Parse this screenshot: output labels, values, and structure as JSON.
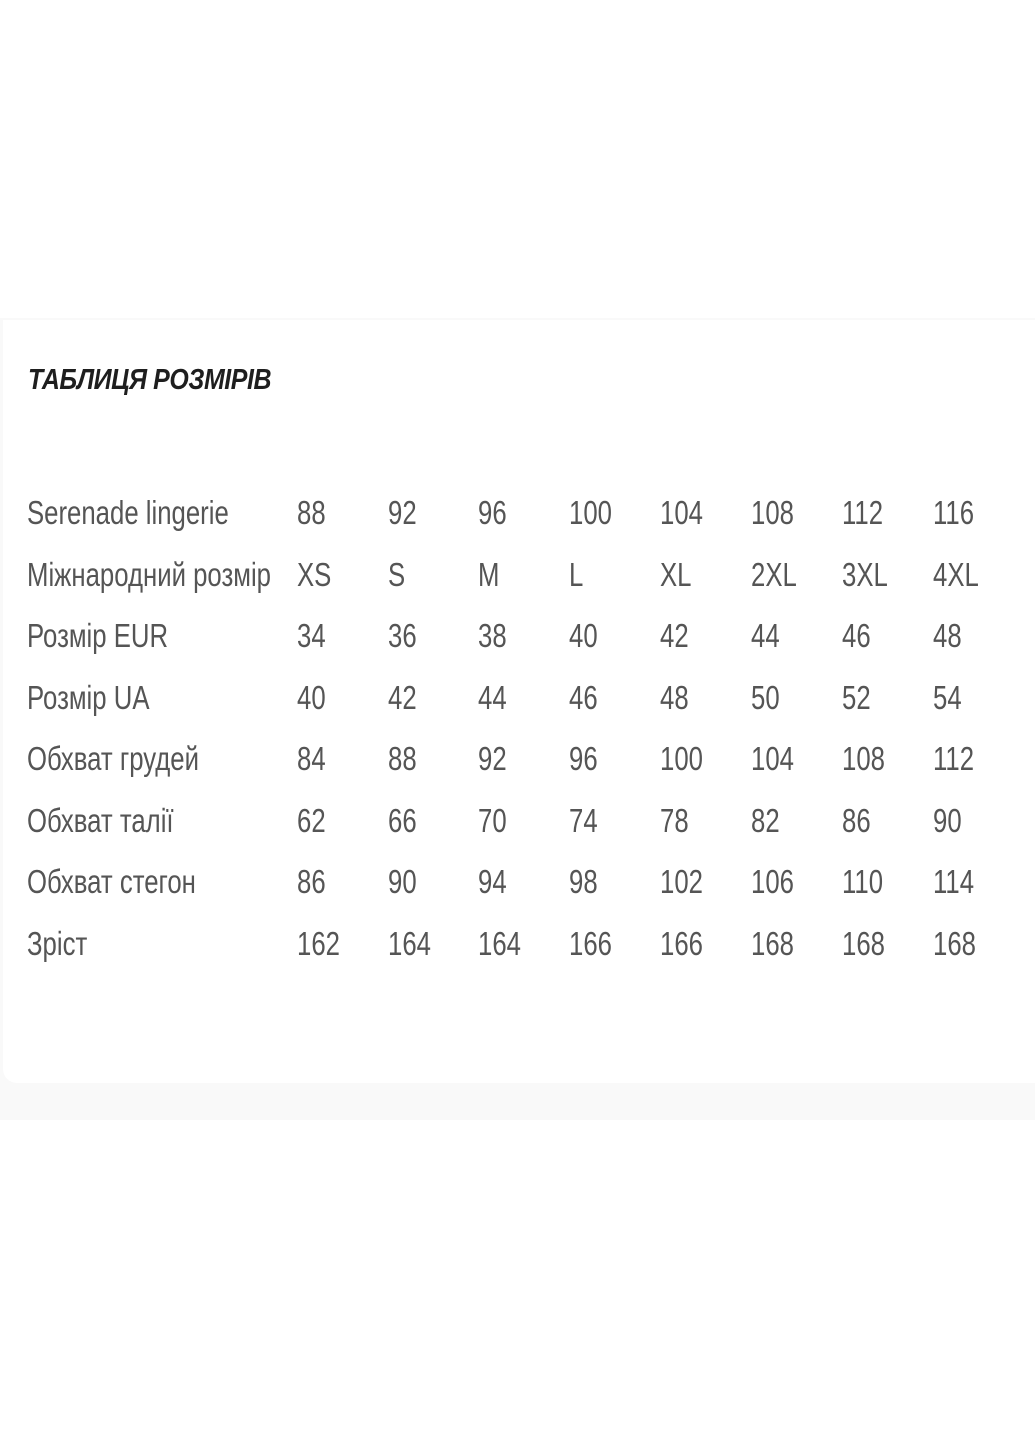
{
  "title": "ТАБЛИЦЯ РОЗМІРІВ",
  "rows": [
    {
      "label": "Serenade lingerie",
      "values": [
        "88",
        "92",
        "96",
        "100",
        "104",
        "108",
        "112",
        "116"
      ]
    },
    {
      "label": "Міжнародний розмір",
      "values": [
        "XS",
        "S",
        "M",
        "L",
        "XL",
        "2XL",
        "3XL",
        "4XL"
      ]
    },
    {
      "label": "Розмір EUR",
      "values": [
        "34",
        "36",
        "38",
        "40",
        "42",
        "44",
        "46",
        "48"
      ]
    },
    {
      "label": "Розмір UA",
      "values": [
        "40",
        "42",
        "44",
        "46",
        "48",
        "50",
        "52",
        "54"
      ]
    },
    {
      "label": "Обхват грудей",
      "values": [
        "84",
        "88",
        "92",
        "96",
        "100",
        "104",
        "108",
        "112"
      ]
    },
    {
      "label": "Обхват талії",
      "values": [
        "62",
        "66",
        "70",
        "74",
        "78",
        "82",
        "86",
        "90"
      ]
    },
    {
      "label": "Обхват стегон",
      "values": [
        "86",
        "90",
        "94",
        "98",
        "102",
        "106",
        "110",
        "114"
      ]
    },
    {
      "label": "Зріст",
      "values": [
        "162",
        "164",
        "164",
        "166",
        "166",
        "168",
        "168",
        "168"
      ]
    }
  ]
}
